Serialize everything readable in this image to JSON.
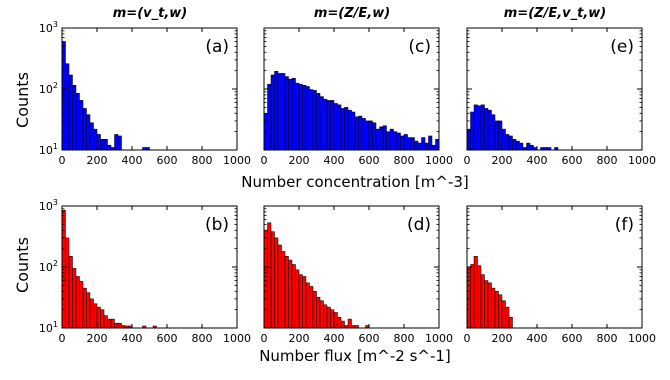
{
  "chart_data": [
    {
      "type": "bar",
      "panel": "(a)",
      "title": "m=(v_t,w)",
      "ylabel": "Counts",
      "xlabel": "Number concentration [m^-3]",
      "yscale": "log",
      "xlim": [
        0,
        1000
      ],
      "ylim": [
        10,
        1000
      ],
      "xticks": [
        "0",
        "200",
        "400",
        "600",
        "800",
        "1000"
      ],
      "bin_width": 20,
      "color": "#0000ff",
      "values": [
        600,
        260,
        170,
        115,
        85,
        65,
        48,
        38,
        28,
        22,
        18,
        15,
        15,
        12,
        11,
        18,
        17,
        0,
        0,
        0,
        0,
        0,
        0,
        11,
        11
      ]
    },
    {
      "type": "bar",
      "panel": "(c)",
      "title": "m=(Z/E,w)",
      "yscale": "log",
      "xlim": [
        0,
        1000
      ],
      "ylim": [
        10,
        1000
      ],
      "xticks": [
        "0",
        "200",
        "400",
        "600",
        "800",
        "1000"
      ],
      "bin_width": 20,
      "color": "#0000ff",
      "values": [
        40,
        120,
        170,
        195,
        180,
        180,
        160,
        145,
        150,
        125,
        120,
        115,
        110,
        98,
        95,
        85,
        75,
        68,
        65,
        65,
        58,
        55,
        48,
        50,
        45,
        42,
        35,
        36,
        33,
        30,
        30,
        28,
        22,
        24,
        25,
        20,
        22,
        20,
        19,
        17,
        18,
        16,
        16,
        14,
        13,
        16,
        13,
        17,
        12,
        15
      ]
    },
    {
      "type": "bar",
      "panel": "(e)",
      "title": "m=(Z/E,v_t,w)",
      "yscale": "log",
      "xlim": [
        0,
        1000
      ],
      "ylim": [
        10,
        1000
      ],
      "xticks": [
        "0",
        "200",
        "400",
        "600",
        "800",
        "1000"
      ],
      "bin_width": 20,
      "color": "#0000ff",
      "values": [
        22,
        42,
        55,
        53,
        55,
        48,
        45,
        38,
        30,
        30,
        22,
        18,
        17,
        15,
        14,
        13,
        11,
        13,
        12,
        11,
        0,
        11,
        11,
        11,
        0,
        11
      ]
    },
    {
      "type": "bar",
      "panel": "(b)",
      "ylabel": "Counts",
      "xlabel": "Number flux [m^-2 s^-1]",
      "yscale": "log",
      "xlim": [
        0,
        1000
      ],
      "ylim": [
        10,
        1000
      ],
      "xticks": [
        "0",
        "200",
        "400",
        "600",
        "800",
        "1000"
      ],
      "bin_width": 20,
      "color": "#ff0000",
      "values": [
        850,
        300,
        150,
        95,
        70,
        58,
        45,
        38,
        30,
        25,
        22,
        20,
        16,
        14,
        14,
        12,
        12,
        11,
        10.8,
        10.8,
        0,
        0,
        0,
        10.8,
        0,
        0,
        10.8
      ]
    },
    {
      "type": "bar",
      "panel": "(d)",
      "yscale": "log",
      "xlim": [
        0,
        1000
      ],
      "ylim": [
        10,
        1000
      ],
      "xticks": [
        "0",
        "200",
        "400",
        "600",
        "800",
        "1000"
      ],
      "bin_width": 20,
      "color": "#ff0000",
      "values": [
        400,
        530,
        380,
        300,
        230,
        180,
        150,
        130,
        110,
        90,
        75,
        70,
        55,
        48,
        40,
        32,
        28,
        24,
        22,
        20,
        18,
        15,
        13,
        11,
        14,
        11,
        11,
        0,
        0,
        11
      ]
    },
    {
      "type": "bar",
      "panel": "(f)",
      "yscale": "log",
      "xlim": [
        0,
        1000
      ],
      "ylim": [
        10,
        1000
      ],
      "xticks": [
        "0",
        "200",
        "400",
        "600",
        "800",
        "1000"
      ],
      "bin_width": 20,
      "color": "#ff0000",
      "values": [
        100,
        110,
        150,
        105,
        75,
        60,
        55,
        45,
        40,
        35,
        28,
        22,
        15
      ]
    }
  ]
}
